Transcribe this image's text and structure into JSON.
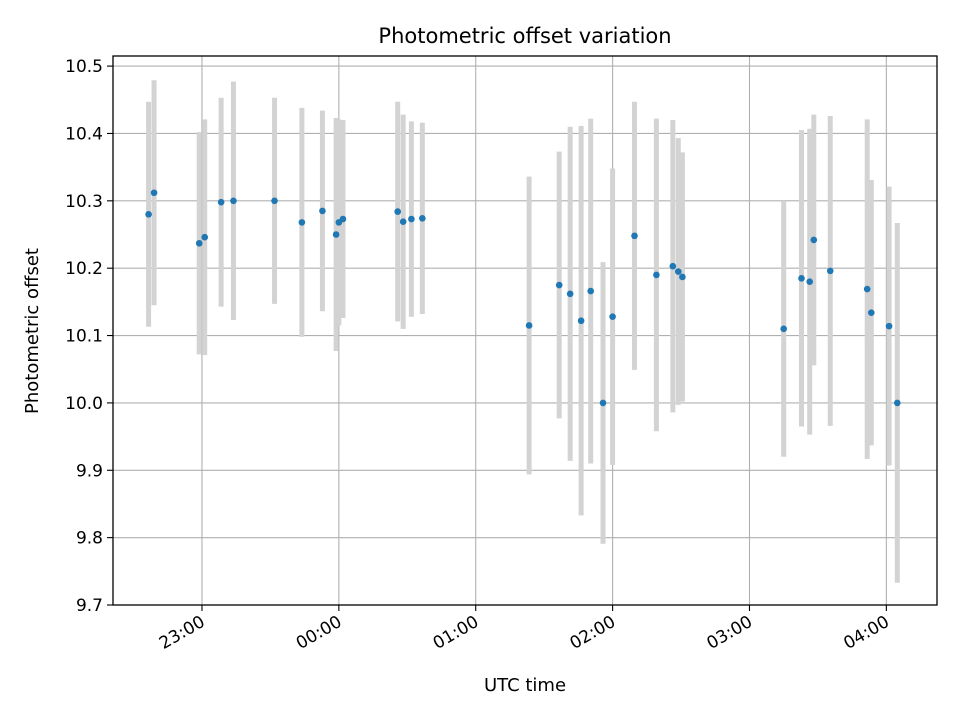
{
  "chart_data": {
    "type": "scatter",
    "title": "Photometric offset variation",
    "xlabel": "UTC time",
    "ylabel": "Photometric offset",
    "x_unit": "hours relative to 00:00 UTC (negative = previous evening)",
    "xlim": [
      -1.65,
      4.37
    ],
    "ylim": [
      9.7,
      10.515
    ],
    "grid": true,
    "x_ticks": [
      -1,
      0,
      1,
      2,
      3,
      4
    ],
    "x_tick_labels": [
      "23:00",
      "00:00",
      "01:00",
      "02:00",
      "03:00",
      "04:00"
    ],
    "y_ticks": [
      9.7,
      9.8,
      9.9,
      10.0,
      10.1,
      10.2,
      10.3,
      10.4,
      10.5
    ],
    "y_tick_labels": [
      "9.7",
      "9.8",
      "9.9",
      "10.0",
      "10.1",
      "10.2",
      "10.3",
      "10.4",
      "10.5"
    ],
    "colors": {
      "points": "#1f77b4",
      "error_bars": "#d3d3d3",
      "grid": "#b0b0b0"
    },
    "points": [
      {
        "x": -1.39,
        "y": 10.28,
        "err": 0.167
      },
      {
        "x": -1.35,
        "y": 10.312,
        "err": 0.167
      },
      {
        "x": -0.02,
        "y": 10.25,
        "err": 0.173
      },
      {
        "x": -1.02,
        "y": 10.237,
        "err": 0.165
      },
      {
        "x": -0.98,
        "y": 10.246,
        "err": 0.175
      },
      {
        "x": -0.86,
        "y": 10.298,
        "err": 0.155
      },
      {
        "x": -0.77,
        "y": 10.3,
        "err": 0.177
      },
      {
        "x": -0.47,
        "y": 10.3,
        "err": 0.153
      },
      {
        "x": -0.27,
        "y": 10.268,
        "err": 0.17
      },
      {
        "x": -0.12,
        "y": 10.285,
        "err": 0.149
      },
      {
        "x": 0.0,
        "y": 10.268,
        "err": 0.153
      },
      {
        "x": 0.03,
        "y": 10.273,
        "err": 0.147
      },
      {
        "x": 0.43,
        "y": 10.284,
        "err": 0.163
      },
      {
        "x": 0.47,
        "y": 10.269,
        "err": 0.159
      },
      {
        "x": 0.53,
        "y": 10.273,
        "err": 0.145
      },
      {
        "x": 0.61,
        "y": 10.274,
        "err": 0.142
      },
      {
        "x": 1.39,
        "y": 10.115,
        "err": 0.221
      },
      {
        "x": 1.61,
        "y": 10.175,
        "err": 0.198
      },
      {
        "x": 1.69,
        "y": 10.162,
        "err": 0.248
      },
      {
        "x": 1.77,
        "y": 10.122,
        "err": 0.289
      },
      {
        "x": 1.84,
        "y": 10.166,
        "err": 0.256
      },
      {
        "x": 1.93,
        "y": 10.0,
        "err": 0.209
      },
      {
        "x": 2.0,
        "y": 10.128,
        "err": 0.22
      },
      {
        "x": 2.16,
        "y": 10.248,
        "err": 0.199
      },
      {
        "x": 2.32,
        "y": 10.19,
        "err": 0.232
      },
      {
        "x": 2.44,
        "y": 10.203,
        "err": 0.217
      },
      {
        "x": 2.48,
        "y": 10.195,
        "err": 0.198
      },
      {
        "x": 2.51,
        "y": 10.187,
        "err": 0.185
      },
      {
        "x": 3.25,
        "y": 10.11,
        "err": 0.19
      },
      {
        "x": 3.38,
        "y": 10.185,
        "err": 0.22
      },
      {
        "x": 3.44,
        "y": 10.18,
        "err": 0.227
      },
      {
        "x": 3.47,
        "y": 10.242,
        "err": 0.186
      },
      {
        "x": 3.59,
        "y": 10.196,
        "err": 0.23
      },
      {
        "x": 3.86,
        "y": 10.169,
        "err": 0.252
      },
      {
        "x": 3.89,
        "y": 10.134,
        "err": 0.197
      },
      {
        "x": 4.02,
        "y": 10.114,
        "err": 0.207
      },
      {
        "x": 4.08,
        "y": 10.0,
        "err": 0.267
      }
    ]
  }
}
